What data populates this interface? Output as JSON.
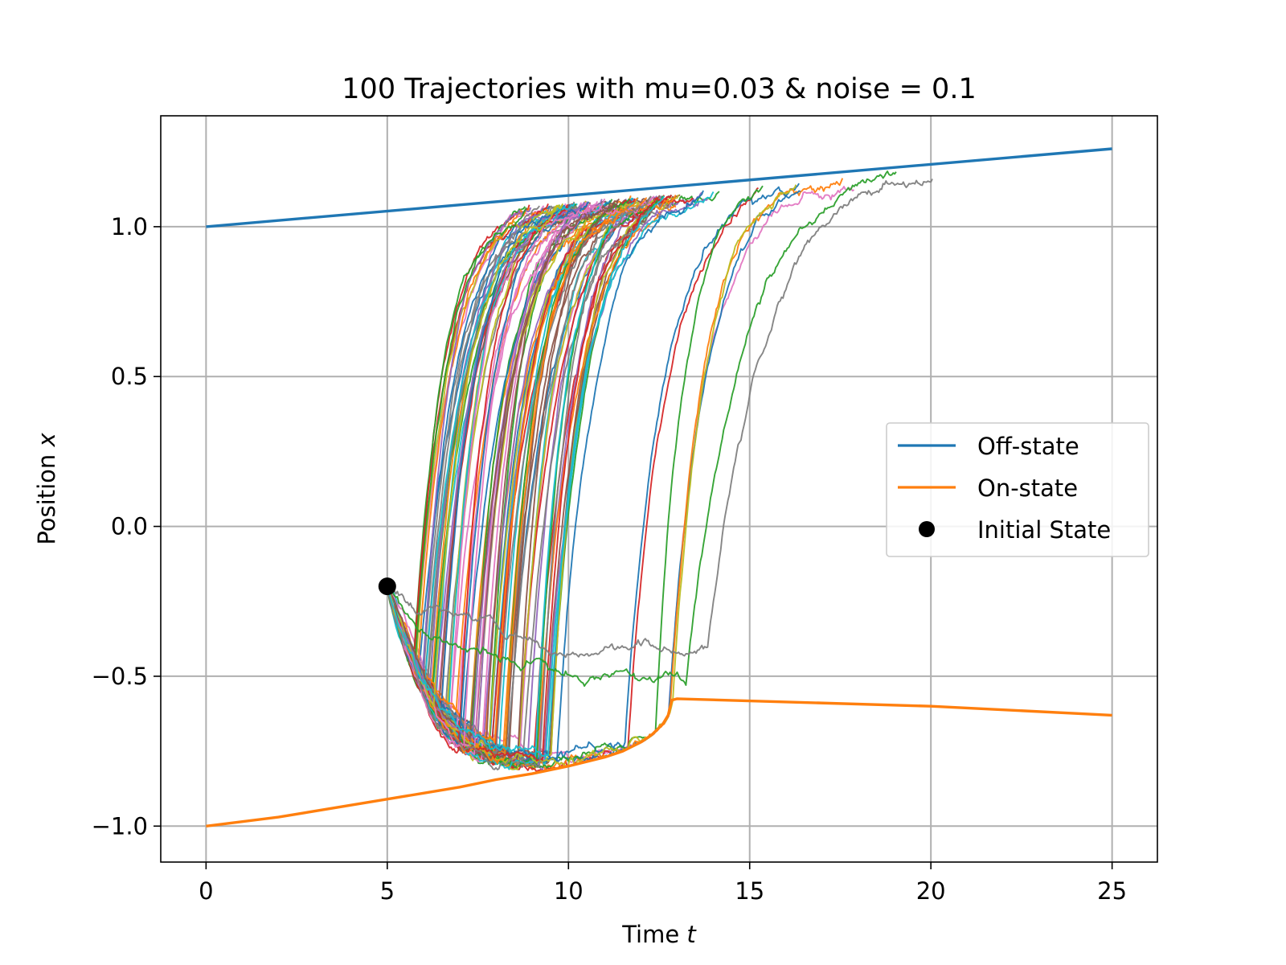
{
  "chart_data": {
    "type": "line",
    "title": "100 Trajectories with mu=0.03 & noise = 0.1",
    "xlabel_text": "Time ",
    "xlabel_var": "t",
    "ylabel_text": "Position ",
    "ylabel_var": "x",
    "xlim": [
      -1.25,
      26.25
    ],
    "ylim": [
      -1.12,
      1.37
    ],
    "xticks": [
      0,
      5,
      10,
      15,
      20,
      25
    ],
    "xtick_labels": [
      "0",
      "5",
      "10",
      "15",
      "20",
      "25"
    ],
    "yticks": [
      -1.0,
      -0.5,
      0.0,
      0.5,
      1.0
    ],
    "ytick_labels": [
      "−1.0",
      "−0.5",
      "0.0",
      "0.5",
      "1.0"
    ],
    "grid": true,
    "legend_position": "center-right",
    "series": [
      {
        "name": "Off-state",
        "color": "#1f77b4",
        "x": [
          0,
          25
        ],
        "y": [
          1.0,
          1.26
        ]
      },
      {
        "name": "On-state",
        "color": "#ff7f0e",
        "x": [
          0,
          2,
          4,
          6,
          7,
          8,
          9,
          10,
          11,
          11.5,
          12,
          12.3,
          12.6,
          12.75,
          12.85,
          13,
          20,
          25
        ],
        "y": [
          -1.0,
          -0.97,
          -0.93,
          -0.89,
          -0.87,
          -0.845,
          -0.825,
          -0.8,
          -0.77,
          -0.75,
          -0.72,
          -0.695,
          -0.66,
          -0.63,
          -0.58,
          -0.575,
          -0.6,
          -0.63
        ]
      }
    ],
    "initial_state": {
      "name": "Initial State",
      "color": "#000000",
      "x": 5,
      "y": -0.2
    },
    "trajectory_ensemble": {
      "count": 100,
      "start_time": 5,
      "start_value": -0.2,
      "time_step": 0.04,
      "noise": 0.1,
      "mu": 0.03,
      "colors": [
        "#1f77b4",
        "#ff7f0e",
        "#2ca02c",
        "#d62728",
        "#9467bd",
        "#8c564b",
        "#e377c2",
        "#7f7f7f",
        "#bcbd22",
        "#17becf"
      ]
    }
  }
}
